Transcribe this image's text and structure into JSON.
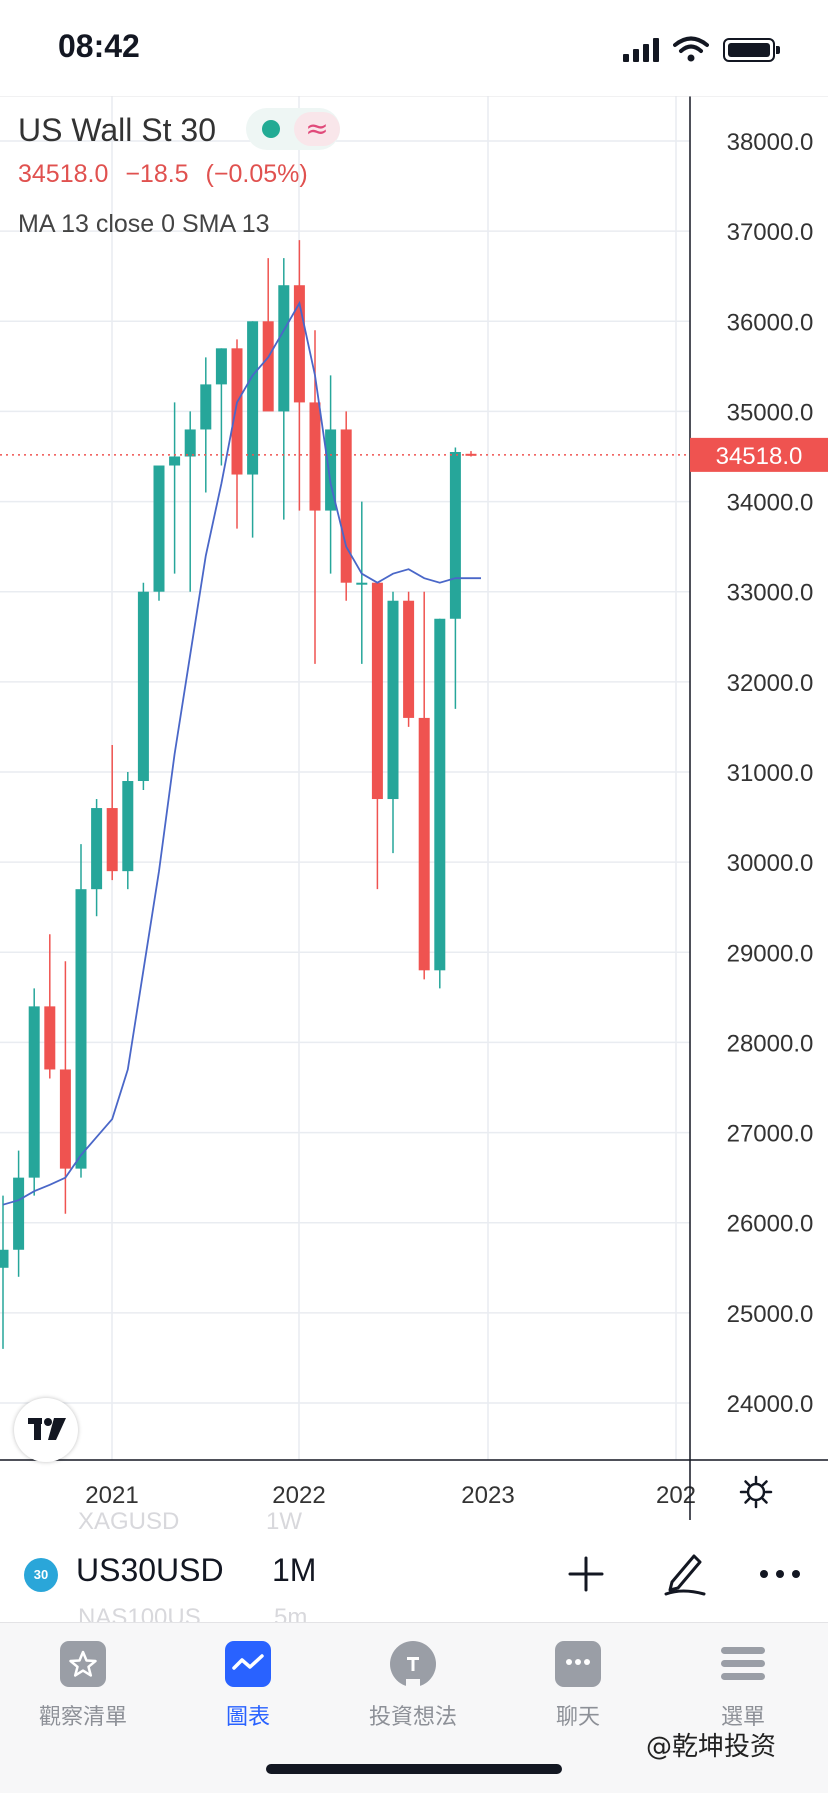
{
  "status_bar": {
    "time": "08:42"
  },
  "chart_header": {
    "symbol_title": "US Wall St 30",
    "price": "34518.0",
    "change": "−18.5",
    "change_pct": "(−0.05%)",
    "indicator": "MA 13 close 0 SMA 13",
    "market_sign": "≈"
  },
  "chart_data": {
    "type": "candlestick",
    "interval": "1M",
    "ylim": [
      23500,
      38500
    ],
    "y_ticks": [
      24000,
      25000,
      26000,
      27000,
      28000,
      29000,
      30000,
      31000,
      32000,
      33000,
      34000,
      35000,
      36000,
      37000,
      38000
    ],
    "y_tick_labels": [
      "24000.0",
      "25000.0",
      "26000.0",
      "27000.0",
      "28000.0",
      "29000.0",
      "30000.0",
      "31000.0",
      "32000.0",
      "33000.0",
      "34000.0",
      "35000.0",
      "36000.0",
      "37000.0",
      "38000.0"
    ],
    "x_labels": [
      "2021",
      "2022",
      "2023",
      "202"
    ],
    "last_price": 34518.0,
    "last_price_label": "34518.0",
    "candles": [
      {
        "o": 25500,
        "h": 26300,
        "l": 24600,
        "c": 25700
      },
      {
        "o": 25700,
        "h": 26800,
        "l": 25400,
        "c": 26500
      },
      {
        "o": 26500,
        "h": 28600,
        "l": 26300,
        "c": 28400
      },
      {
        "o": 28400,
        "h": 29200,
        "l": 27600,
        "c": 27700
      },
      {
        "o": 27700,
        "h": 28900,
        "l": 26100,
        "c": 26600
      },
      {
        "o": 26600,
        "h": 30200,
        "l": 26500,
        "c": 29700
      },
      {
        "o": 29700,
        "h": 30700,
        "l": 29400,
        "c": 30600
      },
      {
        "o": 30600,
        "h": 31300,
        "l": 29800,
        "c": 29900
      },
      {
        "o": 29900,
        "h": 31000,
        "l": 29700,
        "c": 30900
      },
      {
        "o": 30900,
        "h": 33100,
        "l": 30800,
        "c": 33000
      },
      {
        "o": 33000,
        "h": 34300,
        "l": 32900,
        "c": 34400
      },
      {
        "o": 34400,
        "h": 35100,
        "l": 33200,
        "c": 34500
      },
      {
        "o": 34500,
        "h": 35000,
        "l": 33000,
        "c": 34800
      },
      {
        "o": 34800,
        "h": 35600,
        "l": 34100,
        "c": 35300
      },
      {
        "o": 35300,
        "h": 35700,
        "l": 34400,
        "c": 35700
      },
      {
        "o": 35700,
        "h": 35800,
        "l": 33700,
        "c": 34300
      },
      {
        "o": 34300,
        "h": 36000,
        "l": 33600,
        "c": 36000
      },
      {
        "o": 36000,
        "h": 36700,
        "l": 35100,
        "c": 35000
      },
      {
        "o": 35000,
        "h": 36700,
        "l": 33800,
        "c": 36400
      },
      {
        "o": 36400,
        "h": 36900,
        "l": 33900,
        "c": 35100
      },
      {
        "o": 35100,
        "h": 35900,
        "l": 32200,
        "c": 33900
      },
      {
        "o": 33900,
        "h": 35400,
        "l": 33200,
        "c": 34800
      },
      {
        "o": 34800,
        "h": 35000,
        "l": 32900,
        "c": 33100
      },
      {
        "o": 33100,
        "h": 34000,
        "l": 32200,
        "c": 33100
      },
      {
        "o": 33100,
        "h": 33100,
        "l": 29700,
        "c": 30700
      },
      {
        "o": 30700,
        "h": 33000,
        "l": 30100,
        "c": 32900
      },
      {
        "o": 32900,
        "h": 33000,
        "l": 31500,
        "c": 31600
      },
      {
        "o": 31600,
        "h": 33000,
        "l": 28700,
        "c": 28800
      },
      {
        "o": 28800,
        "h": 32700,
        "l": 28600,
        "c": 32700
      },
      {
        "o": 32700,
        "h": 34600,
        "l": 31700,
        "c": 34550
      },
      {
        "o": 34530,
        "h": 34560,
        "l": 34500,
        "c": 34518
      }
    ],
    "ma_points": [
      26200,
      26250,
      26350,
      26420,
      26500,
      26750,
      26950,
      27150,
      27700,
      28800,
      29900,
      31200,
      32300,
      33400,
      34200,
      35100,
      35400,
      35600,
      35900,
      36200,
      35400,
      34200,
      33500,
      33200,
      33100,
      33200,
      33250,
      33150,
      33100,
      33150,
      33150
    ],
    "ma_color": "#4a67c8",
    "up_color": "#26a69a",
    "down_color": "#ef5350"
  },
  "toolbar": {
    "badge": "30",
    "symbol": "US30USD",
    "interval": "1M",
    "ghost_above_symbol": "XAGUSD",
    "ghost_above_interval": "1W",
    "ghost_below_symbol": "NAS100US",
    "ghost_below_interval": "5m"
  },
  "tabs": [
    {
      "label": "觀察清單"
    },
    {
      "label": "圖表"
    },
    {
      "label": "投資想法"
    },
    {
      "label": "聊天"
    },
    {
      "label": "選單"
    }
  ],
  "watermark": "@乾坤投资"
}
